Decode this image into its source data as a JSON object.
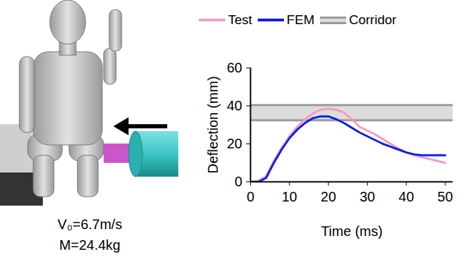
{
  "chart_data": {
    "type": "line",
    "x_label": "Time (ms)",
    "y_label": "Deflection (mm)",
    "x": [
      0,
      2,
      4,
      6,
      8,
      10,
      12,
      14,
      16,
      18,
      20,
      22,
      24,
      26,
      28,
      30,
      32,
      34,
      36,
      38,
      40,
      42,
      44,
      46,
      48,
      50
    ],
    "series": [
      {
        "name": "Test",
        "color": "#f49ac8",
        "values": [
          0,
          0.5,
          3,
          11,
          18,
          24,
          29,
          33,
          36,
          38,
          38.5,
          38,
          36.5,
          33,
          29,
          27,
          25,
          22.5,
          20,
          17.5,
          15.5,
          14,
          13,
          12,
          11,
          10
        ]
      },
      {
        "name": "FEM",
        "color": "#0a1ee6",
        "values": [
          0,
          0,
          2,
          10,
          17,
          23,
          27.5,
          31,
          33.5,
          34.5,
          34.5,
          33,
          31,
          28.5,
          26,
          24,
          22,
          20,
          18.5,
          17,
          15.5,
          14.5,
          14,
          14,
          14,
          14
        ]
      }
    ],
    "corridor": {
      "name": "Corridor",
      "color": "#dcdcdc",
      "lower": 32.5,
      "upper": 40.5
    },
    "xlim": [
      0,
      52
    ],
    "ylim": [
      0,
      60
    ],
    "xticks": [
      0,
      10,
      20,
      30,
      40,
      50
    ],
    "yticks": [
      0,
      20,
      40,
      60
    ],
    "legend": "top",
    "annotations": [
      "V₀=6.7m/s",
      "M=24.4kg"
    ]
  }
}
